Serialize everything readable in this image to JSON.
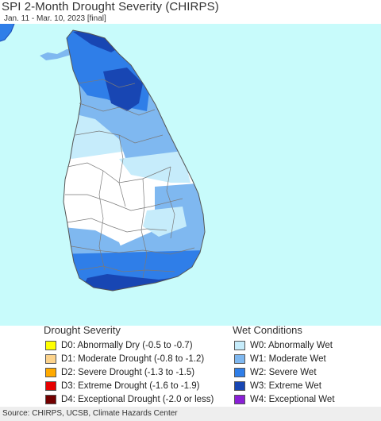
{
  "title": "SPI 2-Month Drought Severity (CHIRPS)",
  "subtitle": "Jan. 11 - Mar. 10, 2023 [final]",
  "colors": {
    "ocean": "#c8fbfb",
    "land_none": "#ffffff",
    "W0": "#c6ecfb",
    "W1": "#7fb8f0",
    "W2": "#2f7ee8",
    "W3": "#1846b3",
    "W4": "#8a1fd6",
    "border": "#7a7a7a"
  },
  "legend": {
    "drought_heading": "Drought Severity",
    "wet_heading": "Wet Conditions",
    "drought": [
      {
        "code": "D0",
        "label": "D0: Abnormally Dry (-0.5 to -0.7)",
        "color": "#ffff00"
      },
      {
        "code": "D1",
        "label": "D1: Moderate Drought (-0.8 to -1.2)",
        "color": "#fcd38c"
      },
      {
        "code": "D2",
        "label": "D2: Severe Drought (-1.3 to -1.5)",
        "color": "#ffaa00"
      },
      {
        "code": "D3",
        "label": "D3: Extreme Drought (-1.6 to -1.9)",
        "color": "#e60000"
      },
      {
        "code": "D4",
        "label": "D4: Exceptional Drought (-2.0 or less)",
        "color": "#730000"
      }
    ],
    "wet": [
      {
        "code": "W0",
        "label": "W0: Abnormally Wet",
        "color": "#c6ecfb"
      },
      {
        "code": "W1",
        "label": "W1: Moderate Wet",
        "color": "#7fb8f0"
      },
      {
        "code": "W2",
        "label": "W2: Severe Wet",
        "color": "#2f7ee8"
      },
      {
        "code": "W3",
        "label": "W3: Extreme Wet",
        "color": "#1846b3"
      },
      {
        "code": "W4",
        "label": "W4: Exceptional Wet",
        "color": "#8a1fd6"
      }
    ]
  },
  "source": "Source: CHIRPS, UCSB, Climate Hazards Center"
}
